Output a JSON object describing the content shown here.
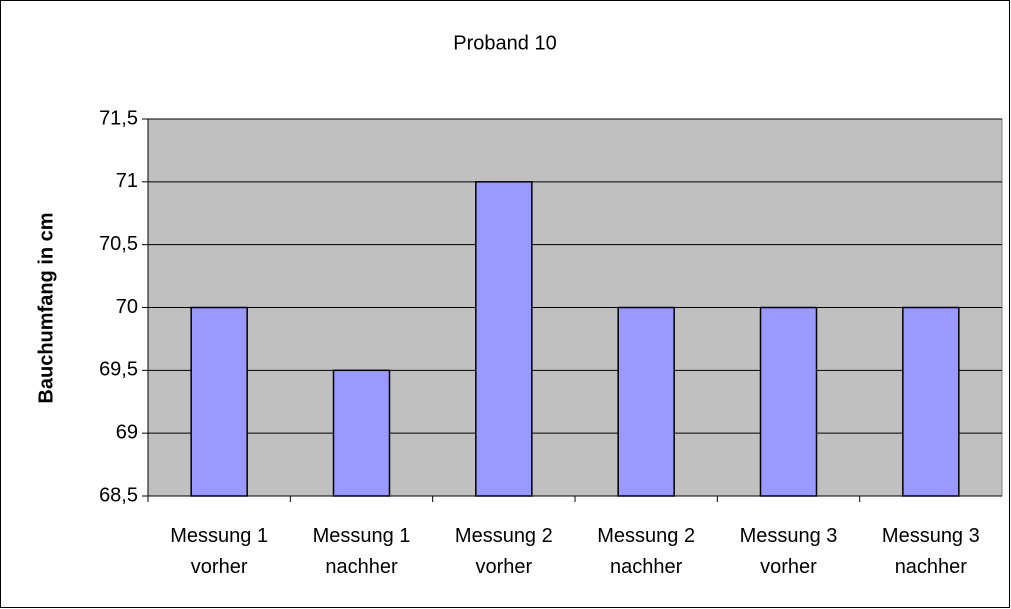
{
  "chart_data": {
    "type": "bar",
    "title": "Proband 10",
    "y_label": "Bauchumfang in cm",
    "categories": [
      "Messung 1 vorher",
      "Messung 1 nachher",
      "Messung 2 vorher",
      "Messung 2 nachher",
      "Messung 3 vorher",
      "Messung 3 nachher"
    ],
    "values": [
      70,
      69.5,
      71,
      70,
      70,
      70
    ],
    "color": "#9999ff",
    "ylim": [
      68.5,
      71.5
    ],
    "yticks": [
      {
        "value": 68.5,
        "label": "68,5"
      },
      69,
      {
        "value": 69.5,
        "label": "69,5"
      },
      70,
      {
        "value": 70.5,
        "label": "70,5"
      },
      71,
      {
        "value": 71.5,
        "label": "71,5"
      }
    ],
    "grid": true
  }
}
